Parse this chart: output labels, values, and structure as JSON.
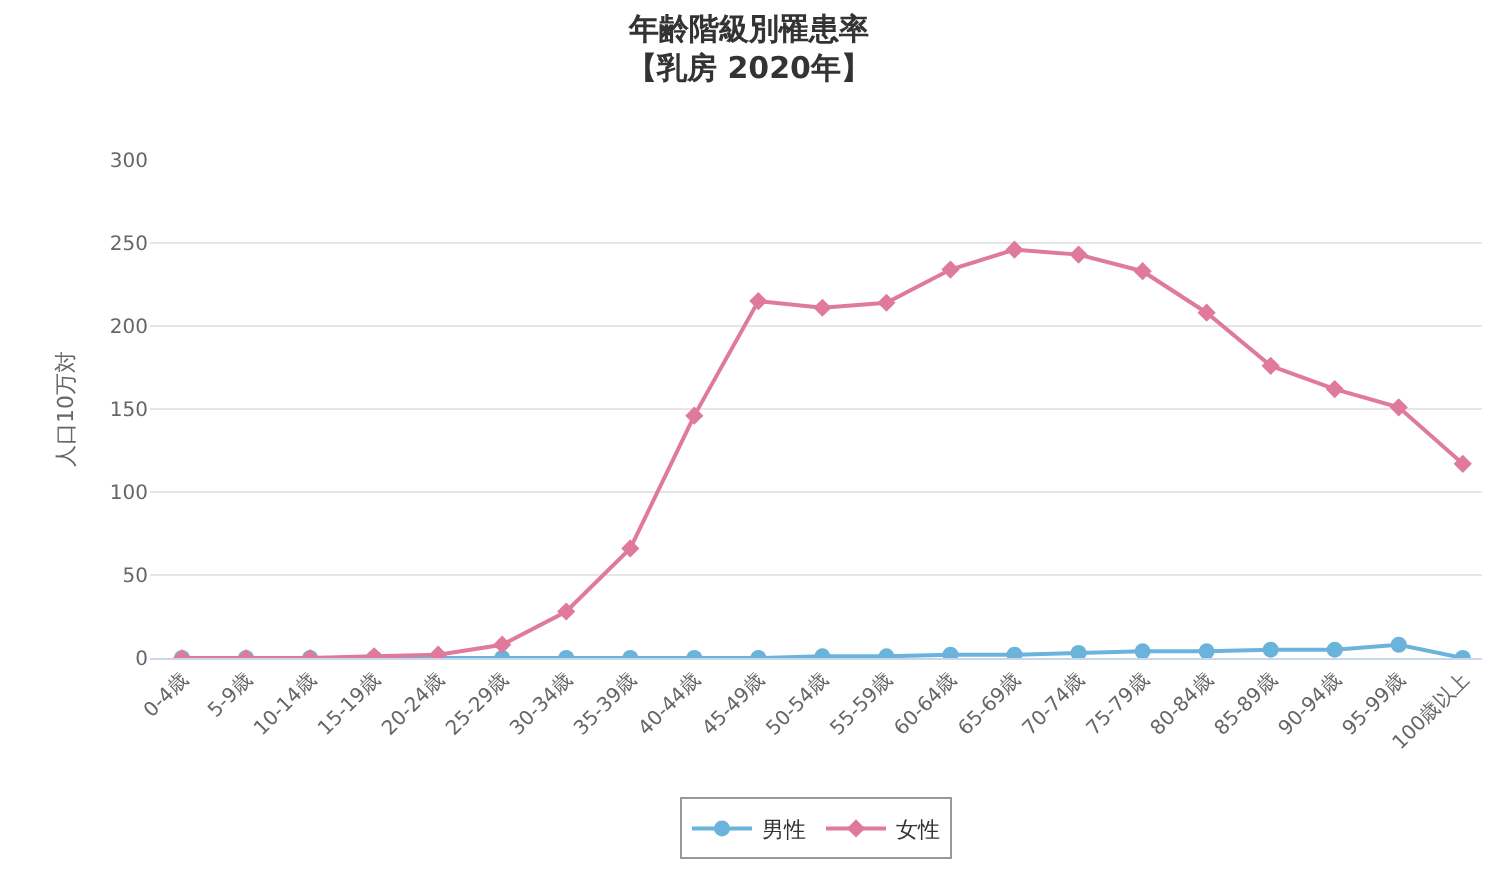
{
  "chart_data": {
    "type": "line",
    "title": "年齢階級別罹患率",
    "subtitle": "【乳房 2020年】",
    "ylabel": "人口10万対",
    "categories": [
      "0-4歳",
      "5-9歳",
      "10-14歳",
      "15-19歳",
      "20-24歳",
      "25-29歳",
      "30-34歳",
      "35-39歳",
      "40-44歳",
      "45-49歳",
      "50-54歳",
      "55-59歳",
      "60-64歳",
      "65-69歳",
      "70-74歳",
      "75-79歳",
      "80-84歳",
      "85-89歳",
      "90-94歳",
      "95-99歳",
      "100歳以上"
    ],
    "series": [
      {
        "name": "男性",
        "color": "#6ab4dc",
        "marker": "circle",
        "values": [
          0,
          0,
          0,
          0,
          0,
          0,
          0,
          0,
          0,
          0,
          1,
          1,
          2,
          2,
          3,
          4,
          4,
          5,
          5,
          8,
          0
        ]
      },
      {
        "name": "女性",
        "color": "#e07a9c",
        "marker": "diamond",
        "values": [
          0,
          0,
          0,
          1,
          2,
          8,
          28,
          66,
          146,
          215,
          211,
          214,
          234,
          246,
          243,
          233,
          208,
          176,
          162,
          151,
          117
        ]
      }
    ],
    "ylim": [
      0,
      300
    ],
    "yticks": [
      0,
      50,
      100,
      150,
      200,
      250,
      300
    ],
    "grid": "y",
    "legend": "bottom"
  }
}
